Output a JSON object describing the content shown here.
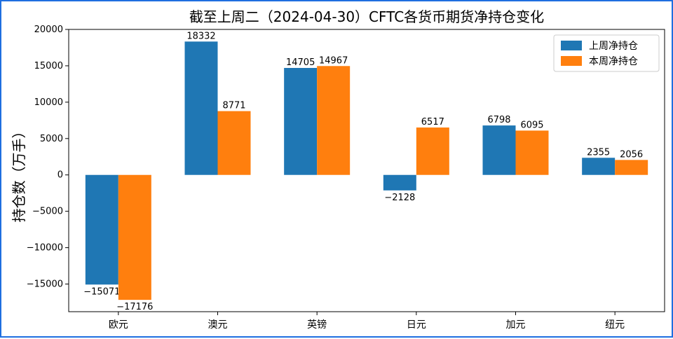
{
  "chart_data": {
    "type": "bar",
    "title": "截至上周二（2024-04-30）CFTC各货币期货净持仓变化",
    "xlabel": "",
    "ylabel": "持仓数（万手）",
    "ylim": [
      -18800,
      20000
    ],
    "yticks": [
      -15000,
      -10000,
      -5000,
      0,
      5000,
      10000,
      15000,
      20000
    ],
    "ytick_labels": [
      "−15000",
      "−10000",
      "−5000",
      "0",
      "5000",
      "10000",
      "15000",
      "20000"
    ],
    "categories": [
      "欧元",
      "澳元",
      "英镑",
      "日元",
      "加元",
      "纽元"
    ],
    "series": [
      {
        "name": "上周净持仓",
        "color": "#1f77b4",
        "values": [
          -15071,
          18332,
          14705,
          -2128,
          6798,
          2355
        ]
      },
      {
        "name": "本周净持仓",
        "color": "#ff7f0e",
        "values": [
          -17176,
          8771,
          14967,
          6517,
          6095,
          2056
        ]
      }
    ],
    "legend_position": "top-right",
    "grid": false
  }
}
